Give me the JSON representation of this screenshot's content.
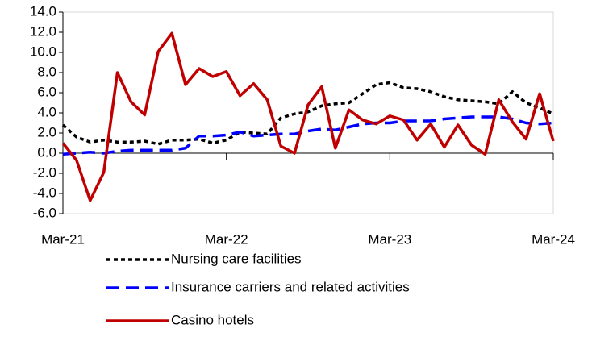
{
  "chart_data": {
    "type": "line",
    "categories": [
      "Mar-21",
      null,
      null,
      null,
      null,
      null,
      null,
      null,
      null,
      null,
      null,
      null,
      "Mar-22",
      null,
      null,
      null,
      null,
      null,
      null,
      null,
      null,
      null,
      null,
      null,
      "Mar-23",
      null,
      null,
      null,
      null,
      null,
      null,
      null,
      null,
      null,
      null,
      null,
      "Mar-24"
    ],
    "series": [
      {
        "name": "Nursing care facilities",
        "color": "#000000",
        "style": "dot",
        "values": [
          2.8,
          1.6,
          1.1,
          1.3,
          1.1,
          1.1,
          1.2,
          0.9,
          1.3,
          1.3,
          1.4,
          1.0,
          1.3,
          2.1,
          2.0,
          1.9,
          3.5,
          3.9,
          4.1,
          4.7,
          4.9,
          5.0,
          5.9,
          6.8,
          7.0,
          6.5,
          6.4,
          6.1,
          5.6,
          5.3,
          5.2,
          5.1,
          4.9,
          6.1,
          5.0,
          4.5,
          3.9
        ]
      },
      {
        "name": "Insurance carriers and related activities",
        "color": "#0000ff",
        "style": "dash",
        "values": [
          -0.1,
          0.0,
          0.1,
          0.0,
          0.2,
          0.3,
          0.3,
          0.3,
          0.3,
          0.5,
          1.7,
          1.7,
          1.8,
          2.1,
          1.7,
          1.8,
          1.9,
          1.9,
          2.2,
          2.4,
          2.3,
          2.6,
          2.9,
          3.0,
          3.0,
          3.2,
          3.2,
          3.2,
          3.4,
          3.5,
          3.6,
          3.6,
          3.6,
          3.4,
          3.0,
          2.9,
          3.0
        ]
      },
      {
        "name": "Casino hotels",
        "color": "#c00000",
        "style": "solid",
        "values": [
          1.0,
          -0.7,
          -4.7,
          -1.9,
          8.0,
          5.1,
          3.8,
          10.1,
          11.9,
          6.8,
          8.4,
          7.6,
          8.1,
          5.7,
          6.9,
          5.3,
          0.7,
          0.0,
          4.8,
          6.6,
          0.5,
          4.3,
          3.3,
          2.9,
          3.7,
          3.3,
          1.3,
          2.9,
          0.6,
          2.8,
          0.8,
          -0.1,
          5.3,
          3.1,
          1.4,
          5.9,
          1.2
        ]
      }
    ],
    "ylim": [
      -6,
      14
    ],
    "yticks": [
      {
        "value": -6,
        "label": "-6.0"
      },
      {
        "value": -4,
        "label": "-4.0"
      },
      {
        "value": -2,
        "label": "-2.0"
      },
      {
        "value": 0,
        "label": "0.0"
      },
      {
        "value": 2,
        "label": "2.0"
      },
      {
        "value": 4,
        "label": "4.0"
      },
      {
        "value": 6,
        "label": "6.0"
      },
      {
        "value": 8,
        "label": "8.0"
      },
      {
        "value": 10,
        "label": "10.0"
      },
      {
        "value": 12,
        "label": "12.0"
      },
      {
        "value": 14,
        "label": "14.0"
      }
    ]
  }
}
